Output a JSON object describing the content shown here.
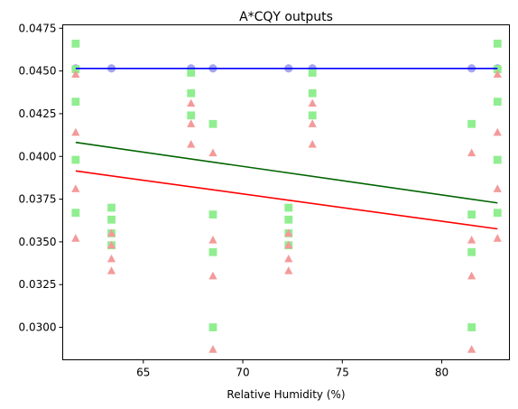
{
  "chart_data": {
    "type": "scatter",
    "title": "A*CQY outputs",
    "xlabel": "Relative Humidity (%)",
    "ylabel": "",
    "xlim": [
      60.95,
      83.4
    ],
    "ylim": [
      0.0281,
      0.0477
    ],
    "x_ticks": [
      65,
      70,
      75,
      80
    ],
    "y_ticks": [
      0.03,
      0.0325,
      0.035,
      0.0375,
      0.04,
      0.0425,
      0.045,
      0.0475
    ],
    "x_tick_labels": [
      "65",
      "70",
      "75",
      "80"
    ],
    "y_tick_labels": [
      "0.0300",
      "0.0325",
      "0.0350",
      "0.0375",
      "0.0400",
      "0.0425",
      "0.0450",
      "0.0475"
    ],
    "grid": false,
    "legend": null,
    "series": [
      {
        "marker": "circle",
        "color": "#9b9bf0",
        "points": [
          [
            61.6,
            0.04515
          ],
          [
            63.4,
            0.04515
          ],
          [
            67.4,
            0.04515
          ],
          [
            68.5,
            0.04515
          ],
          [
            72.3,
            0.04515
          ],
          [
            73.5,
            0.04515
          ],
          [
            81.5,
            0.04515
          ],
          [
            82.8,
            0.04515
          ]
        ]
      },
      {
        "marker": "square",
        "color": "#90ee90",
        "points": [
          [
            61.6,
            0.0466
          ],
          [
            61.6,
            0.0451
          ],
          [
            61.6,
            0.0432
          ],
          [
            61.6,
            0.0398
          ],
          [
            61.6,
            0.0367
          ],
          [
            63.4,
            0.037
          ],
          [
            63.4,
            0.0363
          ],
          [
            63.4,
            0.0355
          ],
          [
            63.4,
            0.0348
          ],
          [
            67.4,
            0.0449
          ],
          [
            67.4,
            0.0437
          ],
          [
            67.4,
            0.0424
          ],
          [
            68.5,
            0.0419
          ],
          [
            68.5,
            0.0366
          ],
          [
            68.5,
            0.0344
          ],
          [
            68.5,
            0.03
          ],
          [
            72.3,
            0.037
          ],
          [
            72.3,
            0.0363
          ],
          [
            72.3,
            0.0355
          ],
          [
            72.3,
            0.0348
          ],
          [
            73.5,
            0.0449
          ],
          [
            73.5,
            0.0437
          ],
          [
            73.5,
            0.0424
          ],
          [
            81.5,
            0.0419
          ],
          [
            81.5,
            0.0366
          ],
          [
            81.5,
            0.0344
          ],
          [
            81.5,
            0.03
          ],
          [
            82.8,
            0.0466
          ],
          [
            82.8,
            0.0451
          ],
          [
            82.8,
            0.0432
          ],
          [
            82.8,
            0.0398
          ],
          [
            82.8,
            0.0367
          ]
        ]
      },
      {
        "marker": "triangle",
        "color": "#f49a9a",
        "points": [
          [
            61.6,
            0.0448
          ],
          [
            61.6,
            0.0414
          ],
          [
            61.6,
            0.0381
          ],
          [
            61.6,
            0.0352
          ],
          [
            63.4,
            0.0355
          ],
          [
            63.4,
            0.0348
          ],
          [
            63.4,
            0.034
          ],
          [
            63.4,
            0.0333
          ],
          [
            67.4,
            0.0431
          ],
          [
            67.4,
            0.0419
          ],
          [
            67.4,
            0.0407
          ],
          [
            68.5,
            0.0402
          ],
          [
            68.5,
            0.0351
          ],
          [
            68.5,
            0.033
          ],
          [
            68.5,
            0.0287
          ],
          [
            72.3,
            0.0355
          ],
          [
            72.3,
            0.0348
          ],
          [
            72.3,
            0.034
          ],
          [
            72.3,
            0.0333
          ],
          [
            73.5,
            0.0431
          ],
          [
            73.5,
            0.0419
          ],
          [
            73.5,
            0.0407
          ],
          [
            81.5,
            0.0402
          ],
          [
            81.5,
            0.0351
          ],
          [
            81.5,
            0.033
          ],
          [
            81.5,
            0.0287
          ],
          [
            82.8,
            0.0448
          ],
          [
            82.8,
            0.0414
          ],
          [
            82.8,
            0.0381
          ],
          [
            82.8,
            0.0352
          ]
        ]
      }
    ],
    "lines": [
      {
        "color": "#0000ff",
        "x": [
          61.6,
          82.8
        ],
        "y": [
          0.04515,
          0.04515
        ]
      },
      {
        "color": "#006400",
        "x": [
          61.6,
          82.8
        ],
        "y": [
          0.04082,
          0.03728
        ]
      },
      {
        "color": "#ff0000",
        "x": [
          61.6,
          82.8
        ],
        "y": [
          0.03915,
          0.03576
        ]
      }
    ]
  }
}
